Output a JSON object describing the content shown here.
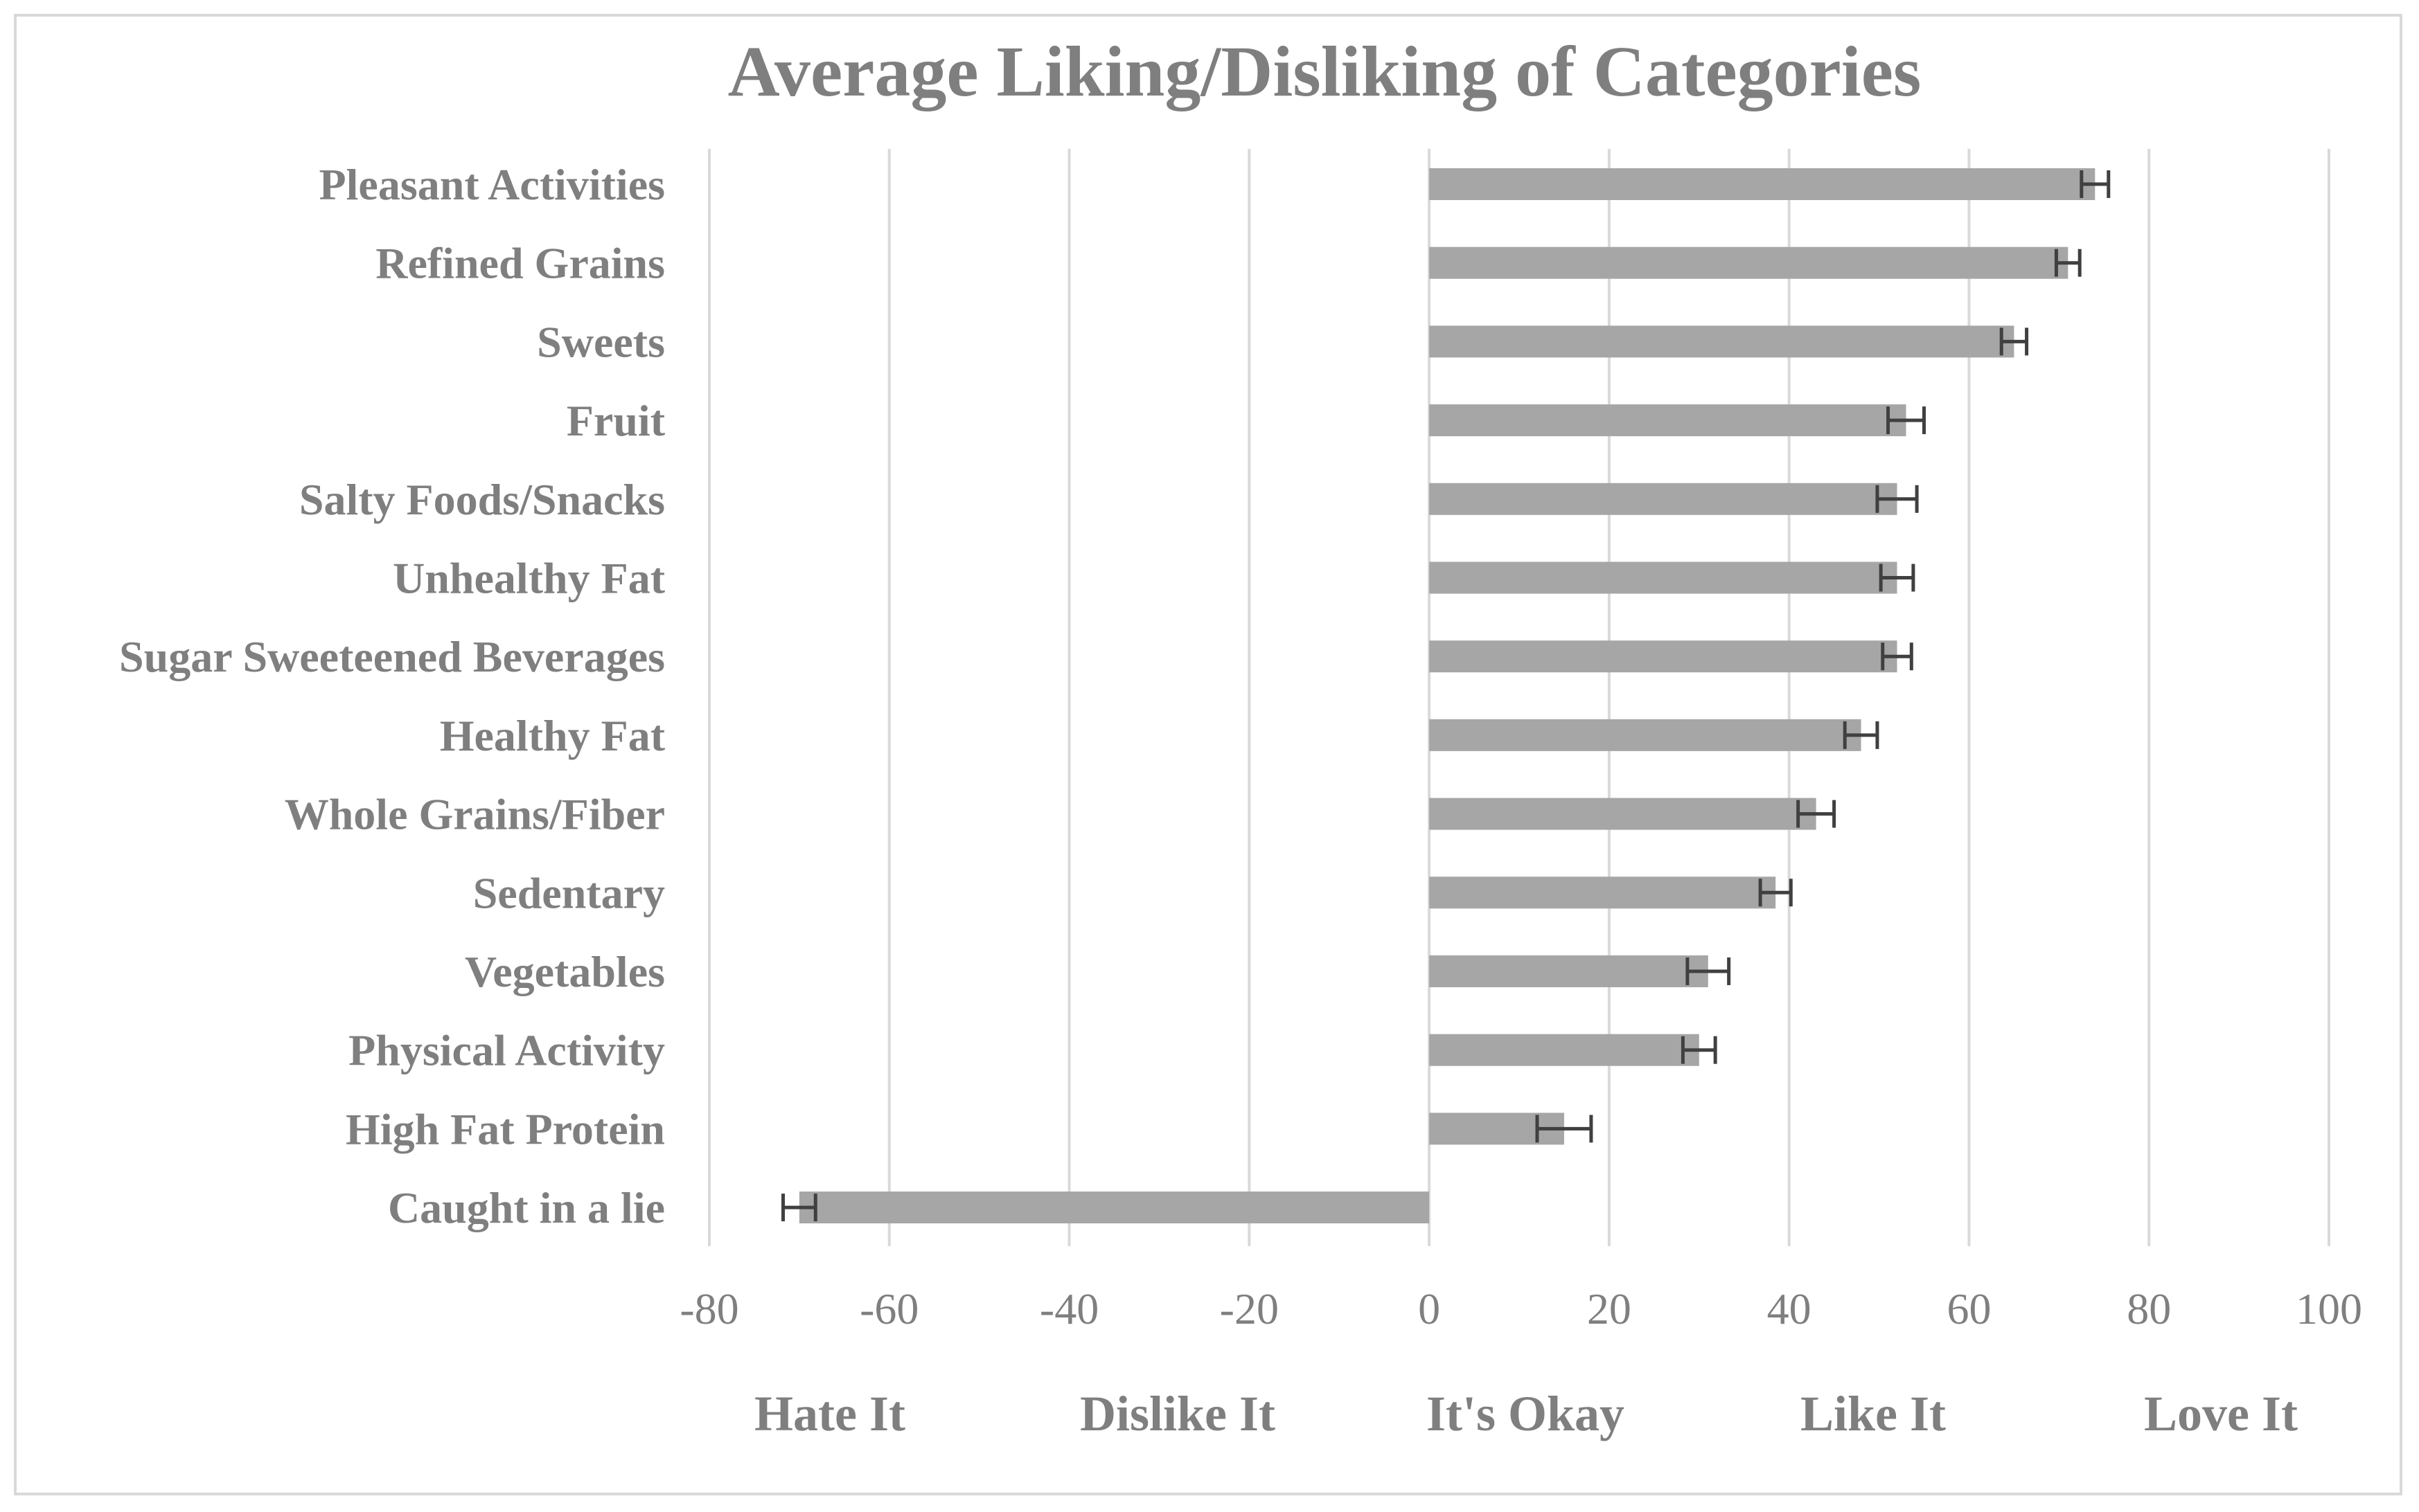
{
  "chart_data": {
    "type": "bar",
    "orientation": "horizontal",
    "title": "Average Liking/Disliking of Categories",
    "categories": [
      "Pleasant Activities",
      "Refined Grains",
      "Sweets",
      "Fruit",
      "Salty Foods/Snacks",
      "Unhealthy Fat",
      "Sugar Sweeteened Beverages",
      "Healthy Fat",
      "Whole Grains/Fiber",
      "Sedentary",
      "Vegetables",
      "Physical Activity",
      "High Fat Protein",
      "Caught in a lie"
    ],
    "values": [
      74,
      71,
      65,
      53,
      52,
      52,
      52,
      48,
      43,
      38.5,
      31,
      30,
      15,
      -70
    ],
    "error": [
      1.5,
      1.3,
      1.4,
      2.0,
      2.2,
      1.8,
      1.6,
      1.8,
      2.0,
      1.7,
      2.3,
      1.8,
      3.0,
      1.8
    ],
    "xlim": [
      -80,
      100
    ],
    "x_ticks": [
      "-80",
      "-60",
      "-40",
      "-20",
      "0",
      "20",
      "40",
      "60",
      "80",
      "100"
    ],
    "x_tick_values": [
      -80,
      -60,
      -40,
      -20,
      0,
      20,
      40,
      60,
      80,
      100
    ],
    "scale_labels": [
      "Hate It",
      "Dislike It",
      "It's Okay",
      "Like It",
      "Love It"
    ],
    "grid": "vertical",
    "bar_color": "#a6a6a6",
    "error_color": "#404040",
    "grid_color": "#d9d9d9",
    "text_color": "#7f7f7f"
  }
}
